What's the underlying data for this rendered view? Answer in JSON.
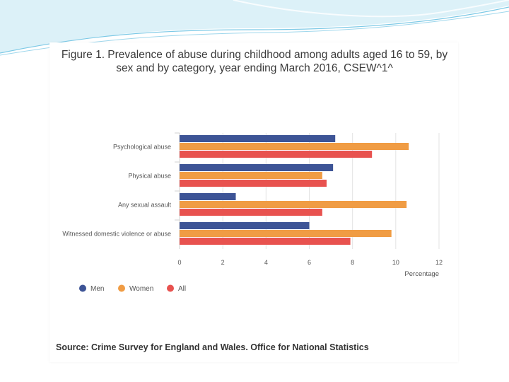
{
  "title": "Figure 1. Prevalence of abuse during childhood among adults aged 16 to 59, by sex and by category, year ending March 2016, CSEW^1^",
  "source": "Source: Crime Survey for England and Wales. Office for National Statistics",
  "colors": {
    "men": "#3d5496",
    "women": "#f09c44",
    "all": "#e8524f",
    "grid": "#e3e3e3",
    "axis_text": "#555555",
    "deco": "#7cc9e6"
  },
  "chart_data": {
    "type": "bar",
    "orientation": "horizontal",
    "categories": [
      "Psychological abuse",
      "Physical abuse",
      "Any sexual assault",
      "Witnessed domestic violence or abuse"
    ],
    "series": [
      {
        "name": "Men",
        "values": [
          7.2,
          7.1,
          2.6,
          6.0
        ]
      },
      {
        "name": "Women",
        "values": [
          10.6,
          6.6,
          10.5,
          9.8
        ]
      },
      {
        "name": "All",
        "values": [
          8.9,
          6.8,
          6.6,
          7.9
        ]
      }
    ],
    "xlim": [
      0,
      12
    ],
    "xticks": [
      0,
      2,
      4,
      6,
      8,
      10,
      12
    ],
    "xlabel": "Percentage",
    "ylabel": "",
    "grid": "vertical",
    "legend": "bottom-left"
  }
}
